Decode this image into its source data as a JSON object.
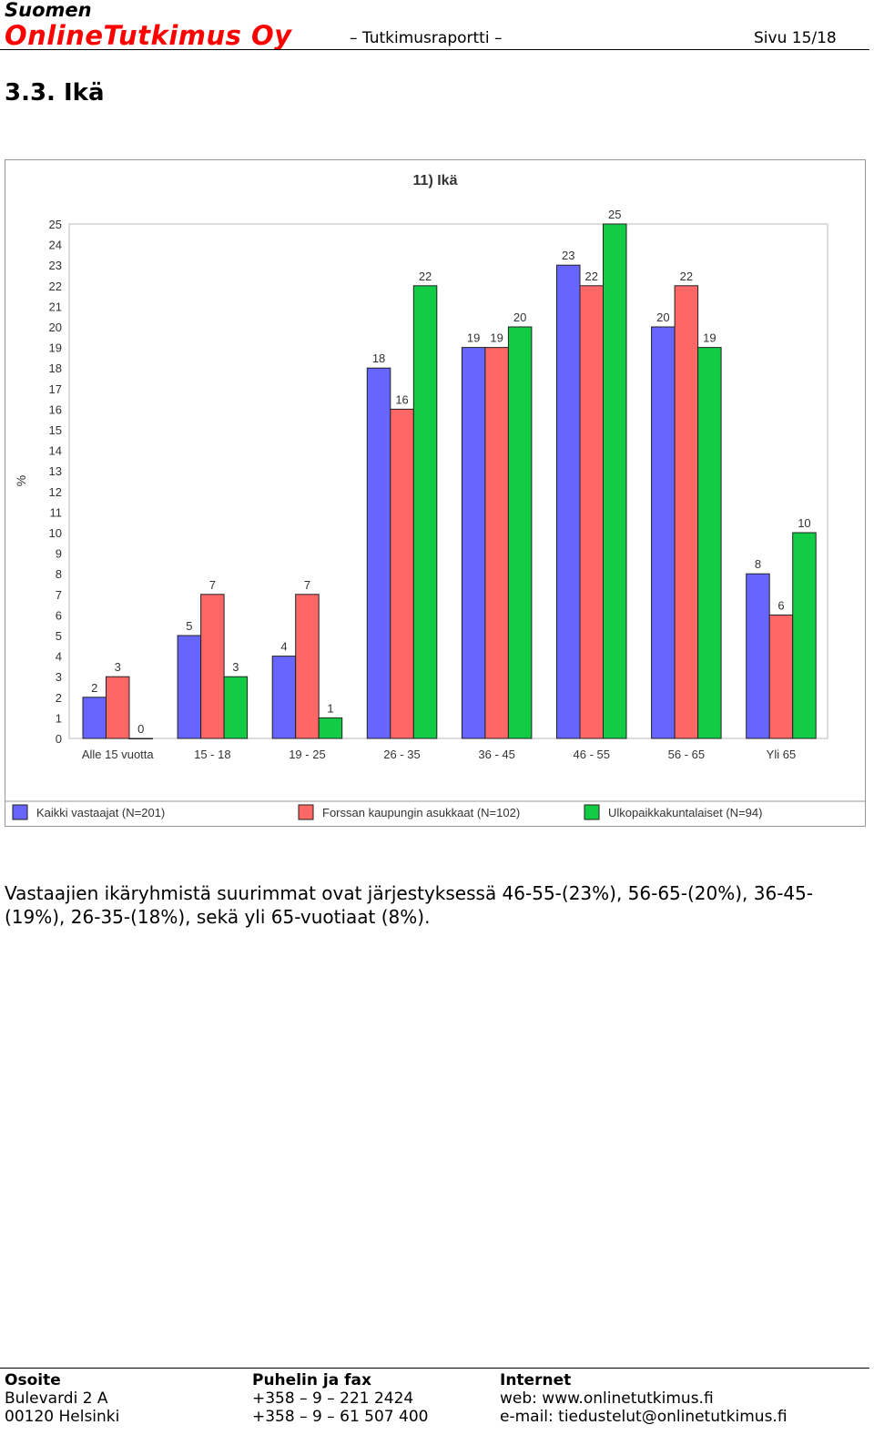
{
  "header": {
    "company_top": "Suomen",
    "company_main": "OnlineTutkimus Oy",
    "report": "– Tutkimusraportti –",
    "page": "Sivu 15/18"
  },
  "section_title": "3.3. Ikä",
  "chart_data": {
    "type": "bar",
    "title": "11) Ikä",
    "ylabel": "%",
    "xlabel": "",
    "ylim": [
      0,
      25
    ],
    "yticks": [
      0,
      1,
      2,
      3,
      4,
      5,
      6,
      7,
      8,
      9,
      10,
      11,
      12,
      13,
      14,
      15,
      16,
      17,
      18,
      19,
      20,
      21,
      22,
      23,
      24,
      25
    ],
    "grid": false,
    "legend_position": "bottom",
    "categories": [
      "Alle 15 vuotta",
      "15 - 18",
      "19 - 25",
      "26 - 35",
      "36 - 45",
      "46 - 55",
      "56 - 65",
      "Yli 65"
    ],
    "series": [
      {
        "name": "Kaikki vastaajat (N=201)",
        "color": "#6666ff",
        "values": [
          2,
          5,
          4,
          18,
          19,
          23,
          20,
          8
        ]
      },
      {
        "name": "Forssan kaupungin asukkaat (N=102)",
        "color": "#ff6666",
        "values": [
          3,
          7,
          7,
          16,
          19,
          22,
          22,
          6
        ]
      },
      {
        "name": "Ulkopaikkakuntalaiset (N=94)",
        "color": "#11cc44",
        "values": [
          0,
          3,
          1,
          22,
          20,
          25,
          19,
          10
        ]
      }
    ]
  },
  "body_text": "Vastaajien ikäryhmistä suurimmat ovat järjestyksessä 46-55-(23%), 56-65-(20%), 36-45-(19%), 26-35-(18%), sekä yli 65-vuotiaat (8%).",
  "footer": {
    "address": {
      "head": "Osoite",
      "line1": "Bulevardi 2 A",
      "line2": "00120 Helsinki"
    },
    "phone": {
      "head": "Puhelin ja fax",
      "line1": "+358 – 9 – 221 2424",
      "line2": "+358 – 9 – 61 507 400"
    },
    "internet": {
      "head": "Internet",
      "line1": "web: www.onlinetutkimus.fi",
      "line2": "e-mail: tiedustelut@onlinetutkimus.fi"
    }
  }
}
